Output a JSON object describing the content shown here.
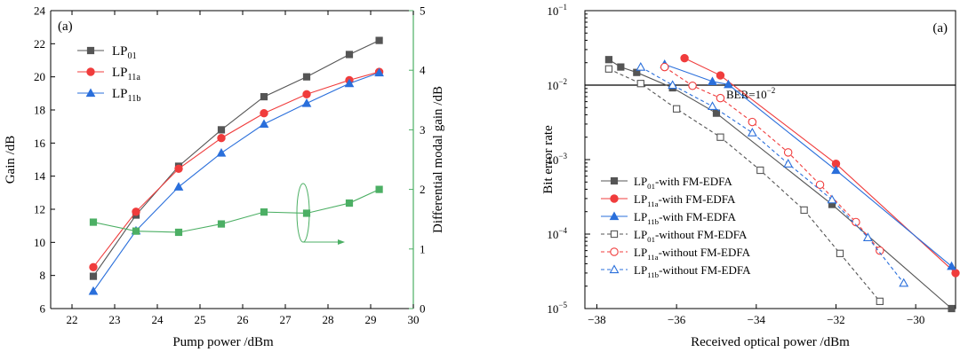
{
  "chart_data": [
    {
      "type": "line",
      "panel_label": "(a)",
      "xlabel": "Pump power /dBm",
      "ylabel": "Gain /dB",
      "y2label": "Differential modal gain /dB",
      "xlim": [
        21.5,
        30
      ],
      "ylim": [
        6,
        24
      ],
      "y2lim": [
        0,
        5
      ],
      "xticks": [
        "22",
        "23",
        "24",
        "25",
        "26",
        "27",
        "28",
        "29",
        "30"
      ],
      "yticks": [
        "6",
        "8",
        "10",
        "12",
        "14",
        "16",
        "18",
        "20",
        "22",
        "24"
      ],
      "y2ticks": [
        "0",
        "1",
        "2",
        "3",
        "4",
        "5"
      ],
      "x": [
        22.5,
        23.5,
        24.5,
        25.5,
        26.5,
        27.5,
        28.5,
        29.2
      ],
      "series": [
        {
          "name": "LP",
          "sub": "01",
          "color": "#555555",
          "marker": "square",
          "axis": "left",
          "values": [
            7.95,
            11.65,
            14.6,
            16.8,
            18.8,
            20.0,
            21.35,
            22.2
          ]
        },
        {
          "name": "LP",
          "sub": "11a",
          "color": "#f03c3c",
          "marker": "circle",
          "axis": "left",
          "values": [
            8.5,
            11.85,
            14.45,
            16.3,
            17.8,
            18.95,
            19.8,
            20.3
          ]
        },
        {
          "name": "LP",
          "sub": "11b",
          "color": "#2a6fdb",
          "marker": "triangle",
          "axis": "left",
          "values": [
            7.05,
            10.7,
            13.35,
            15.4,
            17.15,
            18.4,
            19.6,
            20.25
          ]
        },
        {
          "name": "Differential modal gain",
          "sub": "",
          "color": "#4caf64",
          "marker": "square",
          "axis": "right",
          "legend": false,
          "values": [
            1.45,
            1.3,
            1.28,
            1.42,
            1.62,
            1.6,
            1.77,
            2.0
          ]
        }
      ]
    },
    {
      "type": "line",
      "panel_label": "(a)",
      "xlabel": "Received optical power /dBm",
      "ylabel": "Bit error rate",
      "yscale": "log",
      "xlim": [
        -38.3,
        -29
      ],
      "ylim": [
        1e-05,
        0.1
      ],
      "xticks": [
        "-38",
        "-36",
        "-34",
        "-32",
        "-30"
      ],
      "yticks": [
        {
          "b": "10",
          "e": "-5"
        },
        {
          "b": "10",
          "e": "-4"
        },
        {
          "b": "10",
          "e": "-3"
        },
        {
          "b": "10",
          "e": "-2"
        },
        {
          "b": "10",
          "e": "-1"
        }
      ],
      "threshold": {
        "label": "BER=10",
        "exp": "-2",
        "value": 0.01
      },
      "series": [
        {
          "name": "LP",
          "sub": "01",
          "suffix": "-with FM-EDFA",
          "color": "#555555",
          "marker": "square",
          "filled": true,
          "dashed": false,
          "x": [
            -37.7,
            -37.4,
            -37.0,
            -36.1,
            -35.0,
            -32.1,
            -29.1
          ],
          "y": [
            0.022,
            0.0175,
            0.0148,
            0.0092,
            0.0042,
            0.00025,
            1e-05
          ]
        },
        {
          "name": "LP",
          "sub": "11a",
          "suffix": "-with FM-EDFA",
          "color": "#f03c3c",
          "marker": "circle",
          "filled": true,
          "dashed": false,
          "x": [
            -35.8,
            -34.9,
            -32.0,
            -29.0
          ],
          "y": [
            0.023,
            0.0135,
            0.00088,
            3e-05
          ]
        },
        {
          "name": "LP",
          "sub": "11b",
          "suffix": "-with FM-EDFA",
          "color": "#2a6fdb",
          "marker": "triangle",
          "filled": true,
          "dashed": false,
          "x": [
            -36.3,
            -35.1,
            -34.7,
            -32.0,
            -29.1
          ],
          "y": [
            0.019,
            0.0112,
            0.0102,
            0.00072,
            3.7e-05
          ]
        },
        {
          "name": "LP",
          "sub": "01",
          "suffix": "-without FM-EDFA",
          "color": "#555555",
          "marker": "square",
          "filled": false,
          "dashed": true,
          "x": [
            -37.7,
            -36.9,
            -36.0,
            -34.9,
            -33.9,
            -32.8,
            -31.9,
            -30.9
          ],
          "y": [
            0.0165,
            0.0105,
            0.0048,
            0.002,
            0.00072,
            0.00021,
            5.5e-05,
            1.25e-05
          ]
        },
        {
          "name": "LP",
          "sub": "11a",
          "suffix": "-without FM-EDFA",
          "color": "#f03c3c",
          "marker": "circle",
          "filled": false,
          "dashed": true,
          "x": [
            -36.3,
            -35.6,
            -34.9,
            -34.1,
            -33.2,
            -32.4,
            -31.5,
            -30.9
          ],
          "y": [
            0.0175,
            0.0098,
            0.0067,
            0.0032,
            0.00125,
            0.00046,
            0.000145,
            6e-05
          ]
        },
        {
          "name": "LP",
          "sub": "11b",
          "suffix": "-without FM-EDFA",
          "color": "#2a6fdb",
          "marker": "triangle",
          "filled": false,
          "dashed": true,
          "x": [
            -36.9,
            -36.1,
            -35.1,
            -34.1,
            -33.2,
            -32.1,
            -31.2,
            -30.3
          ],
          "y": [
            0.0175,
            0.01,
            0.0052,
            0.0023,
            0.00088,
            0.00029,
            9e-05,
            2.2e-05
          ]
        }
      ]
    }
  ]
}
